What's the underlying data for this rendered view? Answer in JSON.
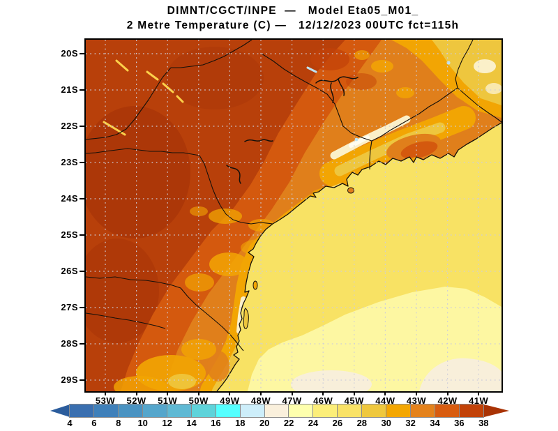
{
  "header": {
    "line1": "DIMNT/CGCT/INPE  —   Model Eta05_M01_",
    "line2": "2 Metre Temperature (C) —   12/12/2023 00UTC fct=115h"
  },
  "map_axes": {
    "lat": [
      "20S",
      "21S",
      "22S",
      "23S",
      "24S",
      "25S",
      "26S",
      "27S",
      "28S",
      "29S"
    ],
    "lon": [
      "53W",
      "52W",
      "51W",
      "50W",
      "49W",
      "48W",
      "47W",
      "46W",
      "45W",
      "44W",
      "43W",
      "42W",
      "41W"
    ]
  },
  "colorbar": {
    "ticks": [
      "4",
      "6",
      "8",
      "10",
      "12",
      "14",
      "16",
      "18",
      "20",
      "22",
      "24",
      "26",
      "28",
      "30",
      "32",
      "34",
      "36",
      "38"
    ],
    "segment_colors": [
      "#3a6fb0",
      "#3f80ba",
      "#4a93c2",
      "#55a6cc",
      "#5fb9d4",
      "#5ed3da",
      "#55ffff",
      "#cdeefa",
      "#faf0dc",
      "#feffad",
      "#fcee79",
      "#f9e266",
      "#efc83e",
      "#f4a702",
      "#e4821c",
      "#d85c10",
      "#c24208"
    ],
    "arrow_left": "#2b5c9c",
    "arrow_right": "#a93305"
  },
  "chart_data": {
    "type": "heatmap",
    "title": "DIMNT/CGCT/INPE — Model Eta05_M01_",
    "variable": "2 Metre Temperature",
    "units": "C",
    "valid_time": "12/12/2023 00UTC",
    "forecast": "fct=115h",
    "lat_range": [
      "20S",
      "29S"
    ],
    "lon_range": [
      "53W",
      "41W"
    ],
    "scale": {
      "min": 4,
      "max": 38,
      "step": 2
    },
    "region_values_c": {
      "inland_west_sao_paulo_parana": "34-38",
      "central_sao_paulo_minas": "30-34",
      "northeast_minas_espirito_santo": "28-32",
      "serra_da_mantiqueira_peaks": "18-24",
      "paraiba_valley": "28-32",
      "coastal_strip_santa_catarina": "26-30",
      "ocean_north_of_25S": "26-28",
      "ocean_southeast": "24-26",
      "ocean_far_southeast_patches": "20-22"
    }
  }
}
